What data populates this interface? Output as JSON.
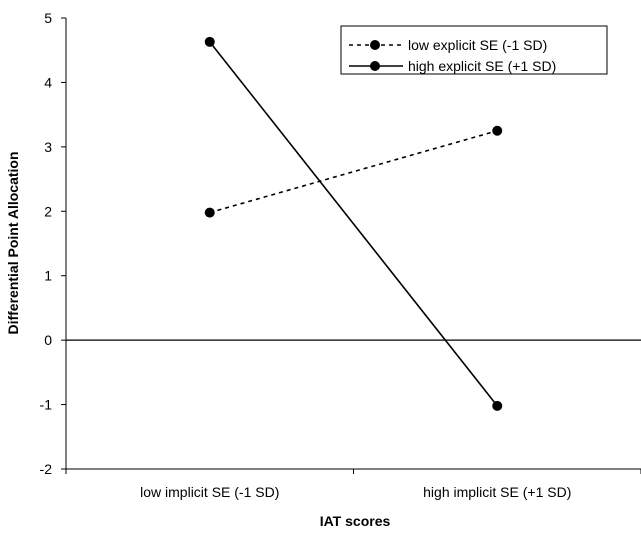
{
  "chart_data": {
    "type": "line",
    "title": "",
    "categories": [
      "low implicit SE (-1 SD)",
      "high implicit SE (+1 SD)"
    ],
    "series": [
      {
        "name": "low explicit SE (-1 SD)",
        "values": [
          1.98,
          3.25
        ],
        "line_style": "dashed",
        "marker": "circle",
        "color": "#000000"
      },
      {
        "name": "high explicit SE (+1 SD)",
        "values": [
          4.63,
          -1.02
        ],
        "line_style": "solid",
        "marker": "circle",
        "color": "#000000"
      }
    ],
    "xlabel": "IAT scores",
    "ylabel": "Differential Point Allocation",
    "ylim": [
      -2,
      5
    ],
    "yticks": [
      -2,
      -1,
      0,
      1,
      2,
      3,
      4,
      5
    ],
    "grid": false,
    "zero_line": true,
    "legend_position": "top-right"
  }
}
